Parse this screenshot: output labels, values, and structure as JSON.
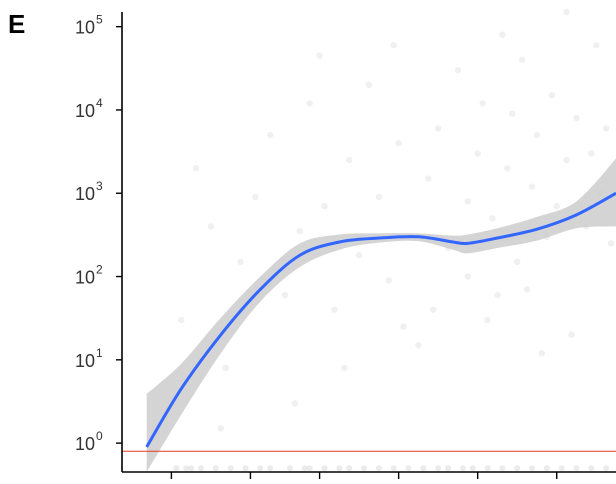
{
  "chart_data": {
    "type": "scatter",
    "panel_label": "E",
    "title": "",
    "xlabel": "",
    "ylabel": "",
    "y_scale": "log10",
    "ylim": [
      0.45,
      150000
    ],
    "xlim": [
      0.0,
      1.0
    ],
    "y_ticks": [
      {
        "base": "10",
        "exp": "0",
        "value": 1
      },
      {
        "base": "10",
        "exp": "1",
        "value": 10
      },
      {
        "base": "10",
        "exp": "2",
        "value": 100
      },
      {
        "base": "10",
        "exp": "3",
        "value": 1000
      },
      {
        "base": "10",
        "exp": "4",
        "value": 10000
      },
      {
        "base": "10",
        "exp": "5",
        "value": 100000
      }
    ],
    "x_tick_positions": [
      0.1,
      0.26,
      0.4,
      0.56,
      0.72,
      0.88
    ],
    "x_tick_labels": [
      "",
      "",
      "",
      "",
      "",
      ""
    ],
    "reference_line": {
      "y": 0.8,
      "color": "#e04020"
    },
    "smooth_fit": {
      "color": "#3366ff",
      "band_color": "#cccccc",
      "x": [
        0.05,
        0.12,
        0.2,
        0.28,
        0.36,
        0.44,
        0.52,
        0.6,
        0.67,
        0.7,
        0.76,
        0.84,
        0.92,
        1.0
      ],
      "y": [
        0.9,
        4.5,
        20,
        70,
        180,
        260,
        290,
        300,
        260,
        250,
        290,
        370,
        550,
        1000
      ],
      "lower": [
        0.3,
        2.2,
        12,
        50,
        130,
        210,
        255,
        265,
        210,
        190,
        220,
        270,
        380,
        400
      ],
      "upper": [
        3.9,
        9,
        32,
        100,
        250,
        320,
        330,
        330,
        310,
        320,
        380,
        520,
        800,
        2600
      ]
    },
    "points": {
      "color": "#cccccc",
      "opacity": 0.3,
      "bottom_row_y": 0.5,
      "bottom_row_x": [
        0.11,
        0.13,
        0.14,
        0.16,
        0.19,
        0.22,
        0.25,
        0.28,
        0.3,
        0.34,
        0.37,
        0.38,
        0.41,
        0.44,
        0.46,
        0.49,
        0.52,
        0.55,
        0.58,
        0.61,
        0.64,
        0.66,
        0.69,
        0.71,
        0.74,
        0.77,
        0.8,
        0.83,
        0.86,
        0.89,
        0.92,
        0.95,
        0.98
      ],
      "cloud": [
        {
          "x": 0.12,
          "y": 30
        },
        {
          "x": 0.15,
          "y": 2000
        },
        {
          "x": 0.18,
          "y": 400
        },
        {
          "x": 0.21,
          "y": 8
        },
        {
          "x": 0.24,
          "y": 150
        },
        {
          "x": 0.27,
          "y": 900
        },
        {
          "x": 0.3,
          "y": 5000
        },
        {
          "x": 0.33,
          "y": 60
        },
        {
          "x": 0.36,
          "y": 350
        },
        {
          "x": 0.38,
          "y": 12000
        },
        {
          "x": 0.41,
          "y": 700
        },
        {
          "x": 0.43,
          "y": 40
        },
        {
          "x": 0.46,
          "y": 2500
        },
        {
          "x": 0.48,
          "y": 180
        },
        {
          "x": 0.5,
          "y": 20000
        },
        {
          "x": 0.52,
          "y": 900
        },
        {
          "x": 0.54,
          "y": 90
        },
        {
          "x": 0.56,
          "y": 4000
        },
        {
          "x": 0.58,
          "y": 300
        },
        {
          "x": 0.6,
          "y": 15
        },
        {
          "x": 0.62,
          "y": 1500
        },
        {
          "x": 0.64,
          "y": 6000
        },
        {
          "x": 0.66,
          "y": 220
        },
        {
          "x": 0.68,
          "y": 30000
        },
        {
          "x": 0.7,
          "y": 800
        },
        {
          "x": 0.72,
          "y": 3000
        },
        {
          "x": 0.73,
          "y": 12000
        },
        {
          "x": 0.75,
          "y": 500
        },
        {
          "x": 0.76,
          "y": 60
        },
        {
          "x": 0.78,
          "y": 2000
        },
        {
          "x": 0.79,
          "y": 9000
        },
        {
          "x": 0.8,
          "y": 150
        },
        {
          "x": 0.81,
          "y": 40000
        },
        {
          "x": 0.83,
          "y": 1200
        },
        {
          "x": 0.84,
          "y": 5000
        },
        {
          "x": 0.86,
          "y": 300
        },
        {
          "x": 0.87,
          "y": 15000
        },
        {
          "x": 0.88,
          "y": 700
        },
        {
          "x": 0.9,
          "y": 2500
        },
        {
          "x": 0.91,
          "y": 20
        },
        {
          "x": 0.92,
          "y": 8000
        },
        {
          "x": 0.94,
          "y": 400
        },
        {
          "x": 0.95,
          "y": 3000
        },
        {
          "x": 0.96,
          "y": 60000
        },
        {
          "x": 0.97,
          "y": 1000
        },
        {
          "x": 0.98,
          "y": 6000
        },
        {
          "x": 0.99,
          "y": 250
        },
        {
          "x": 0.7,
          "y": 100
        },
        {
          "x": 0.74,
          "y": 30
        },
        {
          "x": 0.82,
          "y": 70
        },
        {
          "x": 0.85,
          "y": 12
        },
        {
          "x": 0.63,
          "y": 40
        },
        {
          "x": 0.57,
          "y": 25
        },
        {
          "x": 0.45,
          "y": 8
        },
        {
          "x": 0.35,
          "y": 3
        },
        {
          "x": 0.2,
          "y": 1.5
        },
        {
          "x": 0.9,
          "y": 150000
        },
        {
          "x": 0.77,
          "y": 80000
        },
        {
          "x": 0.55,
          "y": 60000
        },
        {
          "x": 0.4,
          "y": 45000
        }
      ]
    }
  }
}
